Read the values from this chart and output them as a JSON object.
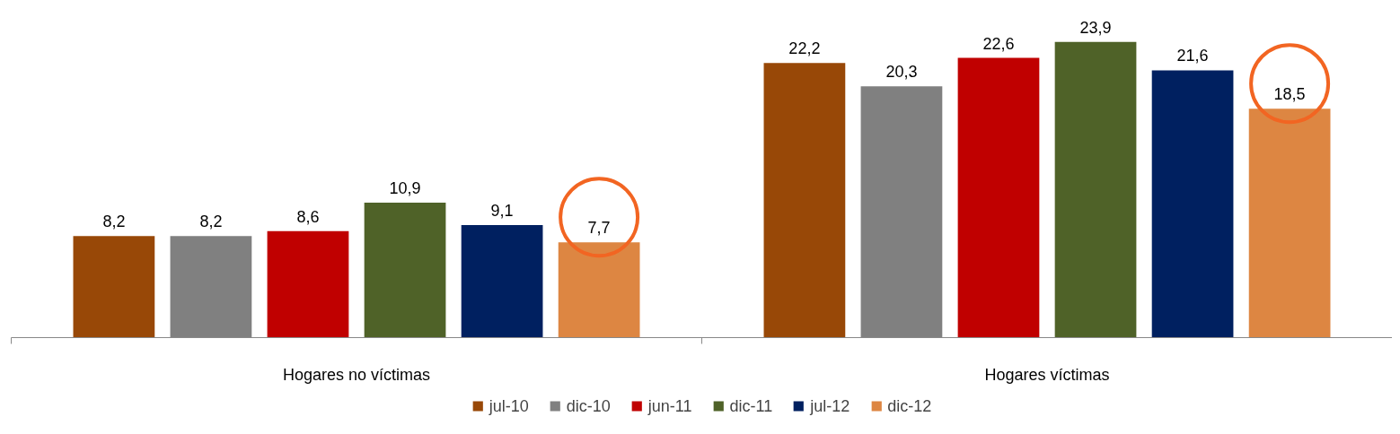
{
  "chart_data": {
    "type": "bar",
    "categories": [
      "Hogares no víctimas",
      "Hogares víctimas"
    ],
    "series": [
      {
        "name": "jul-10",
        "color": "#984807",
        "values": [
          8.2,
          22.2
        ],
        "value_labels": [
          "8,2",
          "22,2"
        ]
      },
      {
        "name": "dic-10",
        "color": "#808080",
        "values": [
          8.2,
          20.3
        ],
        "value_labels": [
          "8,2",
          "20,3"
        ]
      },
      {
        "name": "jun-11",
        "color": "#c00000",
        "values": [
          8.6,
          22.6
        ],
        "value_labels": [
          "8,6",
          "22,6"
        ]
      },
      {
        "name": "dic-11",
        "color": "#4f6228",
        "values": [
          10.9,
          23.9
        ],
        "value_labels": [
          "10,9",
          "23,9"
        ]
      },
      {
        "name": "jul-12",
        "color": "#002060",
        "values": [
          9.1,
          21.6
        ],
        "value_labels": [
          "9,1",
          "21,6"
        ]
      },
      {
        "name": "dic-12",
        "color": "#dd8642",
        "values": [
          7.7,
          18.5
        ],
        "value_labels": [
          "7,7",
          "18,5"
        ]
      }
    ],
    "legend": "bottom"
  }
}
